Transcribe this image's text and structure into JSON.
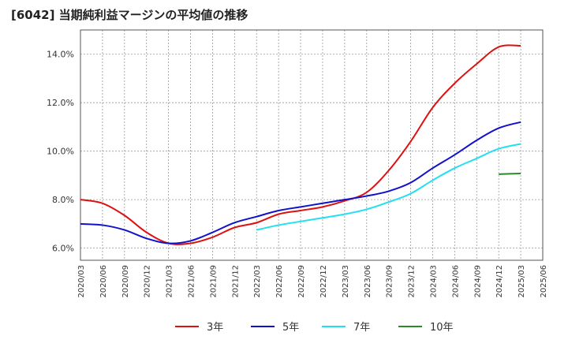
{
  "title": "[6042]  当期純利益マージンの平均値の推移",
  "chart_data": {
    "type": "line",
    "title": "[6042]  当期純利益マージンの平均値の推移",
    "xlabel": "",
    "ylabel": "",
    "ylim": [
      5.5,
      15.0
    ],
    "grid": true,
    "legend_position": "bottom",
    "y_ticks": [
      6.0,
      8.0,
      10.0,
      12.0,
      14.0
    ],
    "y_tick_labels": [
      "6.0%",
      "8.0%",
      "10.0%",
      "12.0%",
      "14.0%"
    ],
    "x_tick_labels": [
      "2020/03",
      "2020/06",
      "2020/09",
      "2020/12",
      "2021/03",
      "2021/06",
      "2021/09",
      "2021/12",
      "2022/03",
      "2022/06",
      "2022/09",
      "2022/12",
      "2023/03",
      "2023/06",
      "2023/09",
      "2023/12",
      "2024/03",
      "2024/06",
      "2024/09",
      "2024/12",
      "2025/03",
      "2025/06"
    ],
    "series": [
      {
        "name": "3年",
        "color": "#dd1111",
        "points": [
          [
            "2020/03",
            8.0
          ],
          [
            "2020/06",
            7.85
          ],
          [
            "2020/09",
            7.35
          ],
          [
            "2020/12",
            6.65
          ],
          [
            "2021/03",
            6.2
          ],
          [
            "2021/06",
            6.2
          ],
          [
            "2021/09",
            6.45
          ],
          [
            "2021/12",
            6.85
          ],
          [
            "2022/03",
            7.05
          ],
          [
            "2022/06",
            7.4
          ],
          [
            "2022/09",
            7.55
          ],
          [
            "2022/12",
            7.7
          ],
          [
            "2023/03",
            7.95
          ],
          [
            "2023/06",
            8.3
          ],
          [
            "2023/09",
            9.2
          ],
          [
            "2023/12",
            10.4
          ],
          [
            "2024/03",
            11.8
          ],
          [
            "2024/06",
            12.8
          ],
          [
            "2024/09",
            13.6
          ],
          [
            "2024/12",
            14.3
          ],
          [
            "2025/03",
            14.35
          ]
        ]
      },
      {
        "name": "5年",
        "color": "#1111cc",
        "points": [
          [
            "2020/03",
            7.0
          ],
          [
            "2020/06",
            6.95
          ],
          [
            "2020/09",
            6.75
          ],
          [
            "2020/12",
            6.4
          ],
          [
            "2021/03",
            6.2
          ],
          [
            "2021/06",
            6.3
          ],
          [
            "2021/09",
            6.65
          ],
          [
            "2021/12",
            7.05
          ],
          [
            "2022/03",
            7.3
          ],
          [
            "2022/06",
            7.55
          ],
          [
            "2022/09",
            7.7
          ],
          [
            "2022/12",
            7.85
          ],
          [
            "2023/03",
            8.0
          ],
          [
            "2023/06",
            8.15
          ],
          [
            "2023/09",
            8.35
          ],
          [
            "2023/12",
            8.7
          ],
          [
            "2024/03",
            9.3
          ],
          [
            "2024/06",
            9.85
          ],
          [
            "2024/09",
            10.45
          ],
          [
            "2024/12",
            10.95
          ],
          [
            "2025/03",
            11.2
          ]
        ]
      },
      {
        "name": "7年",
        "color": "#22e0f0",
        "points": [
          [
            "2022/03",
            6.75
          ],
          [
            "2022/06",
            6.95
          ],
          [
            "2022/09",
            7.1
          ],
          [
            "2022/12",
            7.25
          ],
          [
            "2023/03",
            7.4
          ],
          [
            "2023/06",
            7.6
          ],
          [
            "2023/09",
            7.9
          ],
          [
            "2023/12",
            8.25
          ],
          [
            "2024/03",
            8.8
          ],
          [
            "2024/06",
            9.3
          ],
          [
            "2024/09",
            9.7
          ],
          [
            "2024/12",
            10.1
          ],
          [
            "2025/03",
            10.3
          ]
        ]
      },
      {
        "name": "10年",
        "color": "#2a8a2a",
        "points": [
          [
            "2024/12",
            9.05
          ],
          [
            "2025/03",
            9.08
          ]
        ]
      }
    ]
  }
}
